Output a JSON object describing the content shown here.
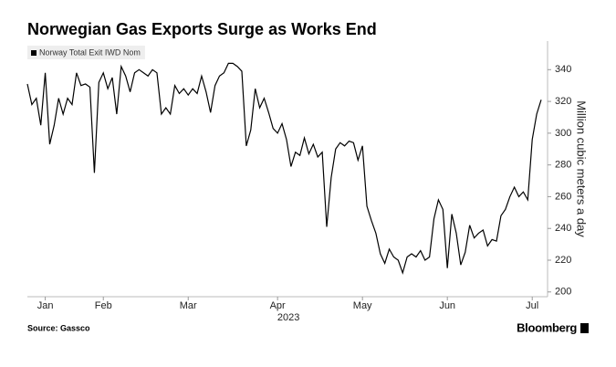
{
  "chart_data": {
    "type": "line",
    "title": "Norwegian Gas Exports Surge as Works End",
    "xlabel": "2023",
    "ylabel": "Million cubic meters a day",
    "source": "Source: Gassco",
    "brand": "Bloomberg",
    "categories": [
      null,
      null,
      null,
      null,
      "Jan",
      null,
      null,
      null,
      null,
      null,
      null,
      null,
      null,
      null,
      null,
      null,
      null,
      "Feb",
      null,
      null,
      null,
      null,
      null,
      null,
      null,
      null,
      null,
      null,
      null,
      null,
      null,
      null,
      null,
      null,
      null,
      null,
      "Mar",
      null,
      null,
      null,
      null,
      null,
      null,
      null,
      null,
      null,
      null,
      null,
      null,
      null,
      null,
      null,
      null,
      null,
      null,
      null,
      "Apr",
      null,
      null,
      null,
      null,
      null,
      null,
      null,
      null,
      null,
      null,
      null,
      null,
      null,
      null,
      null,
      null,
      null,
      null,
      "May",
      null,
      null,
      null,
      null,
      null,
      null,
      null,
      null,
      null,
      null,
      null,
      null,
      null,
      null,
      null,
      null,
      null,
      null,
      "Jun",
      null,
      null,
      null,
      null,
      null,
      null,
      null,
      null,
      null,
      null,
      null,
      null,
      null,
      null,
      null,
      null,
      null,
      null,
      "Jul",
      null,
      null
    ],
    "series": [
      {
        "name": "Norway Total Exit IWD Nom",
        "color": "#000000",
        "values": [
          331,
          318,
          322,
          305,
          338,
          293,
          305,
          322,
          312,
          322,
          318,
          338,
          330,
          331,
          329,
          275,
          332,
          338,
          328,
          335,
          312,
          342,
          336,
          326,
          338,
          340,
          338,
          336,
          340,
          338,
          312,
          316,
          312,
          330,
          325,
          328,
          324,
          328,
          325,
          336,
          326,
          313,
          330,
          336,
          338,
          344,
          344,
          342,
          339,
          292,
          302,
          328,
          316,
          322,
          313,
          303,
          300,
          306,
          296,
          279,
          288,
          286,
          297,
          287,
          293,
          285,
          288,
          241,
          272,
          290,
          294,
          292,
          295,
          294,
          283,
          292,
          254,
          245,
          237,
          224,
          218,
          227,
          222,
          220,
          212,
          222,
          224,
          222,
          226,
          220,
          222,
          246,
          258,
          252,
          215,
          249,
          237,
          217,
          225,
          242,
          234,
          237,
          239,
          229,
          233,
          232,
          248,
          252,
          260,
          266,
          260,
          263,
          258,
          296,
          312,
          321
        ]
      }
    ],
    "ylim": [
      197,
      358
    ],
    "yticks": [
      200,
      220,
      240,
      260,
      280,
      300,
      320,
      340
    ],
    "grid": false,
    "legend": "top-left"
  }
}
